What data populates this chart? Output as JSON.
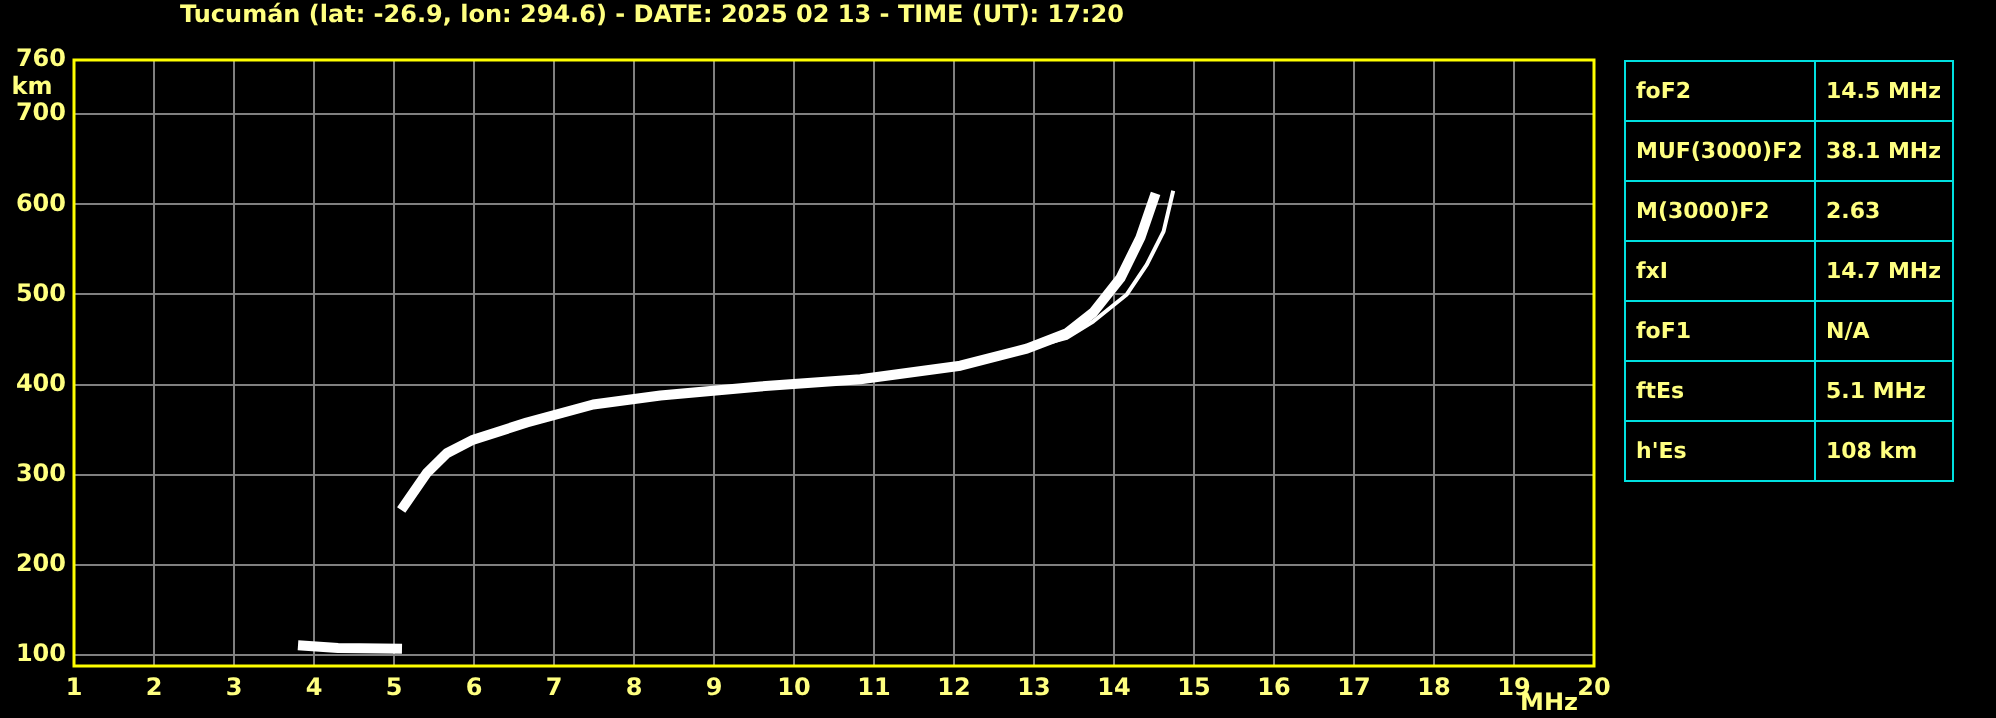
{
  "chart_data": [
    {
      "type": "line",
      "title": "Tucumán (lat: -26.9, lon: 294.6) - DATE: 2025 02 13 - TIME (UT): 17:20",
      "xlabel": "MHz",
      "ylabel": "km",
      "xlim": [
        1,
        20
      ],
      "xticks": [
        1,
        2,
        3,
        4,
        5,
        6,
        7,
        8,
        9,
        10,
        11,
        12,
        13,
        14,
        15,
        16,
        17,
        18,
        19,
        20
      ],
      "ylim": [
        88,
        760
      ],
      "yticks": [
        100,
        200,
        300,
        400,
        500,
        600,
        700,
        760
      ],
      "grid": true,
      "legend": false,
      "marker": "none",
      "line_style": "solid",
      "series": [
        {
          "color": "#ffffff",
          "x": [
            5.09,
            5.41,
            5.66,
            5.99,
            6.66,
            7.49,
            8.33,
            9.58,
            10.83,
            12.08,
            12.91,
            13.41,
            13.74,
            14.08,
            14.33,
            14.52
          ],
          "values": [
            261,
            302,
            324,
            339,
            358,
            378,
            388,
            398,
            406,
            421,
            440,
            457,
            480,
            518,
            563,
            612
          ]
        },
        {
          "color": "#ffffff",
          "x": [
            12.91,
            13.41,
            13.74,
            14.16,
            14.41,
            14.62,
            14.74
          ],
          "values": [
            440,
            452,
            470,
            500,
            533,
            570,
            615
          ]
        },
        {
          "color": "#ffffff",
          "x": [
            3.8,
            4.3,
            5.1
          ],
          "values": [
            111,
            108,
            107
          ]
        }
      ]
    },
    {
      "type": "other",
      "annotations": [
        "foF2",
        "14.5 MHz",
        "MUF(3000)F2",
        "38.1 MHz",
        "M(3000)F2",
        "2.63",
        "fxI",
        "14.7 MHz",
        "foF1",
        "N/A",
        "ftEs",
        "5.1 MHz",
        "h'Es",
        "108 km"
      ]
    }
  ]
}
